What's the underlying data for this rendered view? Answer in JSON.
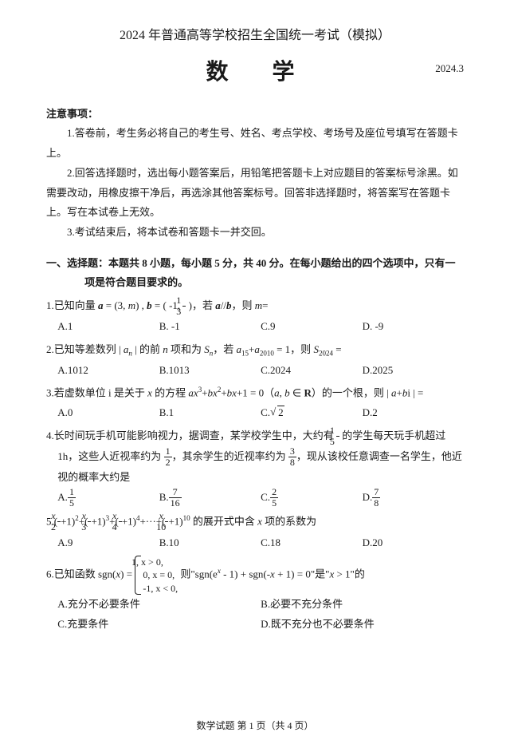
{
  "header": {
    "title": "2024 年普通高等学校招生全国统一考试（模拟）",
    "subject": "数 学",
    "date": "2024.3"
  },
  "notice": {
    "head": "注意事项：",
    "p1": "1.答卷前，考生务必将自己的考生号、姓名、考点学校、考场号及座位号填写在答题卡上。",
    "p2": "2.回答选择题时，选出每小题答案后，用铅笔把答题卡上对应题目的答案标号涂黑。如需要改动，用橡皮擦干净后，再选涂其他答案标号。回答非选择题时，将答案写在答题卡上。写在本试卷上无效。",
    "p3": "3.考试结束后，将本试卷和答题卡一并交回。"
  },
  "section1_head": "一、选择题：本题共 8 小题，每小题 5 分，共 40 分。在每小题给出的四个选项中，只有一项是符合题目要求的。",
  "q1": {
    "pre": "1.已知向量 ",
    "mid": "，若 ",
    "post": "，则 ",
    "eq": "=",
    "A": "A.1",
    "B": "B. -1",
    "C": "C.9",
    "D": "D. -9"
  },
  "q2": {
    "pre": "2.已知等差数列 | ",
    "mid1": " | 的前 ",
    "mid2": " 项和为 ",
    "mid3": "，若 ",
    "mid4": " = 1，则 ",
    "post": " =",
    "A": "A.1012",
    "B": "B.1013",
    "C": "C.2024",
    "D": "D.2025"
  },
  "q3": {
    "pre": "3.若虚数单位 i 是关于 ",
    "mid1": " 的方程 ",
    "mid2": " = 0（",
    "mid3": "）的一个根，则 | ",
    "post": " | =",
    "A": "A.0",
    "B": "B.1",
    "C_pre": "C.",
    "D": "D.2"
  },
  "q4": {
    "pre": "4.长时间玩手机可能影响视力，据调查，某学校学生中，大约有 ",
    "mid1": " 的学生每天玩手机超过",
    "line2a": "1h，这些人近视率约为 ",
    "line2b": "，其余学生的近视率约为 ",
    "line2c": "，现从该校任意调查一名学生，他近",
    "line3": "视的概率大约是",
    "A_pre": "A.",
    "B_pre": "B.",
    "C_pre": "C.",
    "D_pre": "D."
  },
  "q5": {
    "pre": "5.(",
    "mid": " 的展开式中含 ",
    "post": " 项的系数为",
    "A": "A.9",
    "B": "B.10",
    "C": "C.18",
    "D": "D.20"
  },
  "q6": {
    "pre": "6.已知函数 sgn(",
    "mid1": ") = ",
    "case1": "1, x > 0,",
    "case2": "0, x = 0,",
    "case3": "-1, x < 0,",
    "mid2": " 则\"sgn(e",
    "mid3": " - 1) + sgn(-",
    "mid4": " + 1) = 0\"是\"",
    "post": " > 1\"的",
    "A": "A.充分不必要条件",
    "B": "B.必要不充分条件",
    "C": "C.充要条件",
    "D": "D.既不充分也不必要条件"
  },
  "footer": {
    "text": "数学试题  第 1 页（共 4 页）"
  }
}
